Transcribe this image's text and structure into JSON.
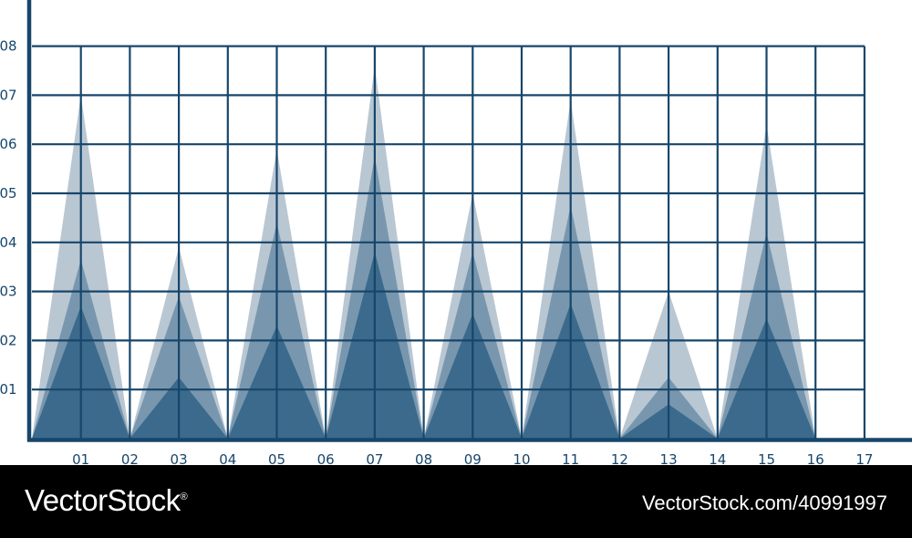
{
  "chart_data": {
    "type": "area",
    "subtype": "layered-triangle-peaks",
    "x_ticks": [
      "01",
      "02",
      "03",
      "04",
      "05",
      "06",
      "07",
      "08",
      "09",
      "10",
      "11",
      "12",
      "13",
      "14",
      "15",
      "16",
      "17"
    ],
    "y_ticks": [
      "01",
      "02",
      "03",
      "04",
      "05",
      "06",
      "07",
      "08"
    ],
    "xlim": [
      0,
      17
    ],
    "ylim": [
      0,
      8
    ],
    "grid": true,
    "peaks": [
      {
        "x": 1,
        "heights": [
          7.0,
          3.65,
          2.7
        ]
      },
      {
        "x": 3,
        "heights": [
          3.9,
          2.9,
          1.25
        ]
      },
      {
        "x": 5,
        "heights": [
          5.9,
          4.4,
          2.3
        ]
      },
      {
        "x": 7,
        "heights": [
          7.6,
          5.75,
          3.8
        ]
      },
      {
        "x": 9,
        "heights": [
          5.0,
          3.8,
          2.55
        ]
      },
      {
        "x": 11,
        "heights": [
          6.9,
          4.75,
          2.75
        ]
      },
      {
        "x": 13,
        "heights": [
          3.0,
          1.25,
          0.7
        ]
      },
      {
        "x": 15,
        "heights": [
          6.4,
          4.2,
          2.45
        ]
      }
    ],
    "layer_colors": [
      "#b9c7d3",
      "#7897ae",
      "#3b6a8c"
    ],
    "line_color": "#17466b"
  },
  "footer": {
    "brand": "VectorStock",
    "registered_mark": "®",
    "stock_id": "VectorStock.com/40991997"
  }
}
